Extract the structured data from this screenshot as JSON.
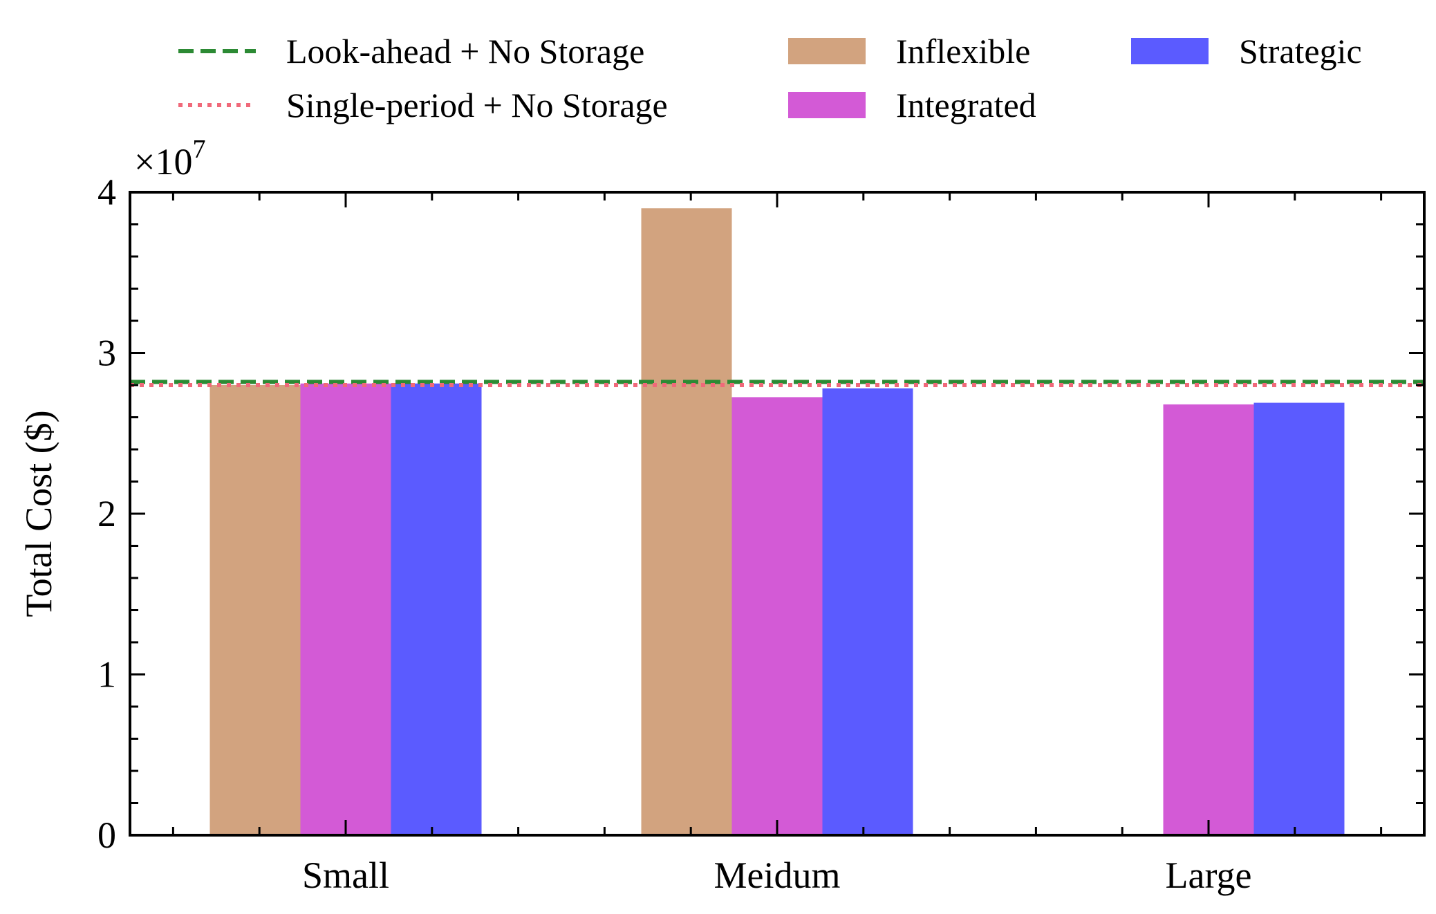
{
  "chart_data": {
    "type": "bar",
    "title": "",
    "xlabel": "",
    "ylabel": "Total Cost ($)",
    "y_multiplier_label": "×10",
    "y_multiplier_exp": "7",
    "scale": 10000000,
    "ylim": [
      0,
      40000000
    ],
    "yticks": [
      0,
      10000000,
      20000000,
      30000000,
      40000000
    ],
    "ytick_labels": [
      "0",
      "1",
      "2",
      "3",
      "4"
    ],
    "categories": [
      "Small",
      "Meidum",
      "Large"
    ],
    "series": [
      {
        "name": "Inflexible",
        "color": "#d2a37f",
        "values": [
          28000000,
          39000000,
          null
        ]
      },
      {
        "name": "Integrated",
        "color": "#d35ad6",
        "values": [
          28100000,
          27250000,
          26800000
        ]
      },
      {
        "name": "Strategic",
        "color": "#5b5bff",
        "values": [
          28100000,
          27800000,
          26900000
        ]
      }
    ],
    "reference_lines": [
      {
        "name": "Look-ahead + No Storage",
        "value": 28200000,
        "color": "#2c8a34",
        "style": "dashed"
      },
      {
        "name": "Single-period + No Storage",
        "value": 28000000,
        "color": "#f0697a",
        "style": "dotted"
      }
    ],
    "legend_position": "top",
    "grid": false
  }
}
